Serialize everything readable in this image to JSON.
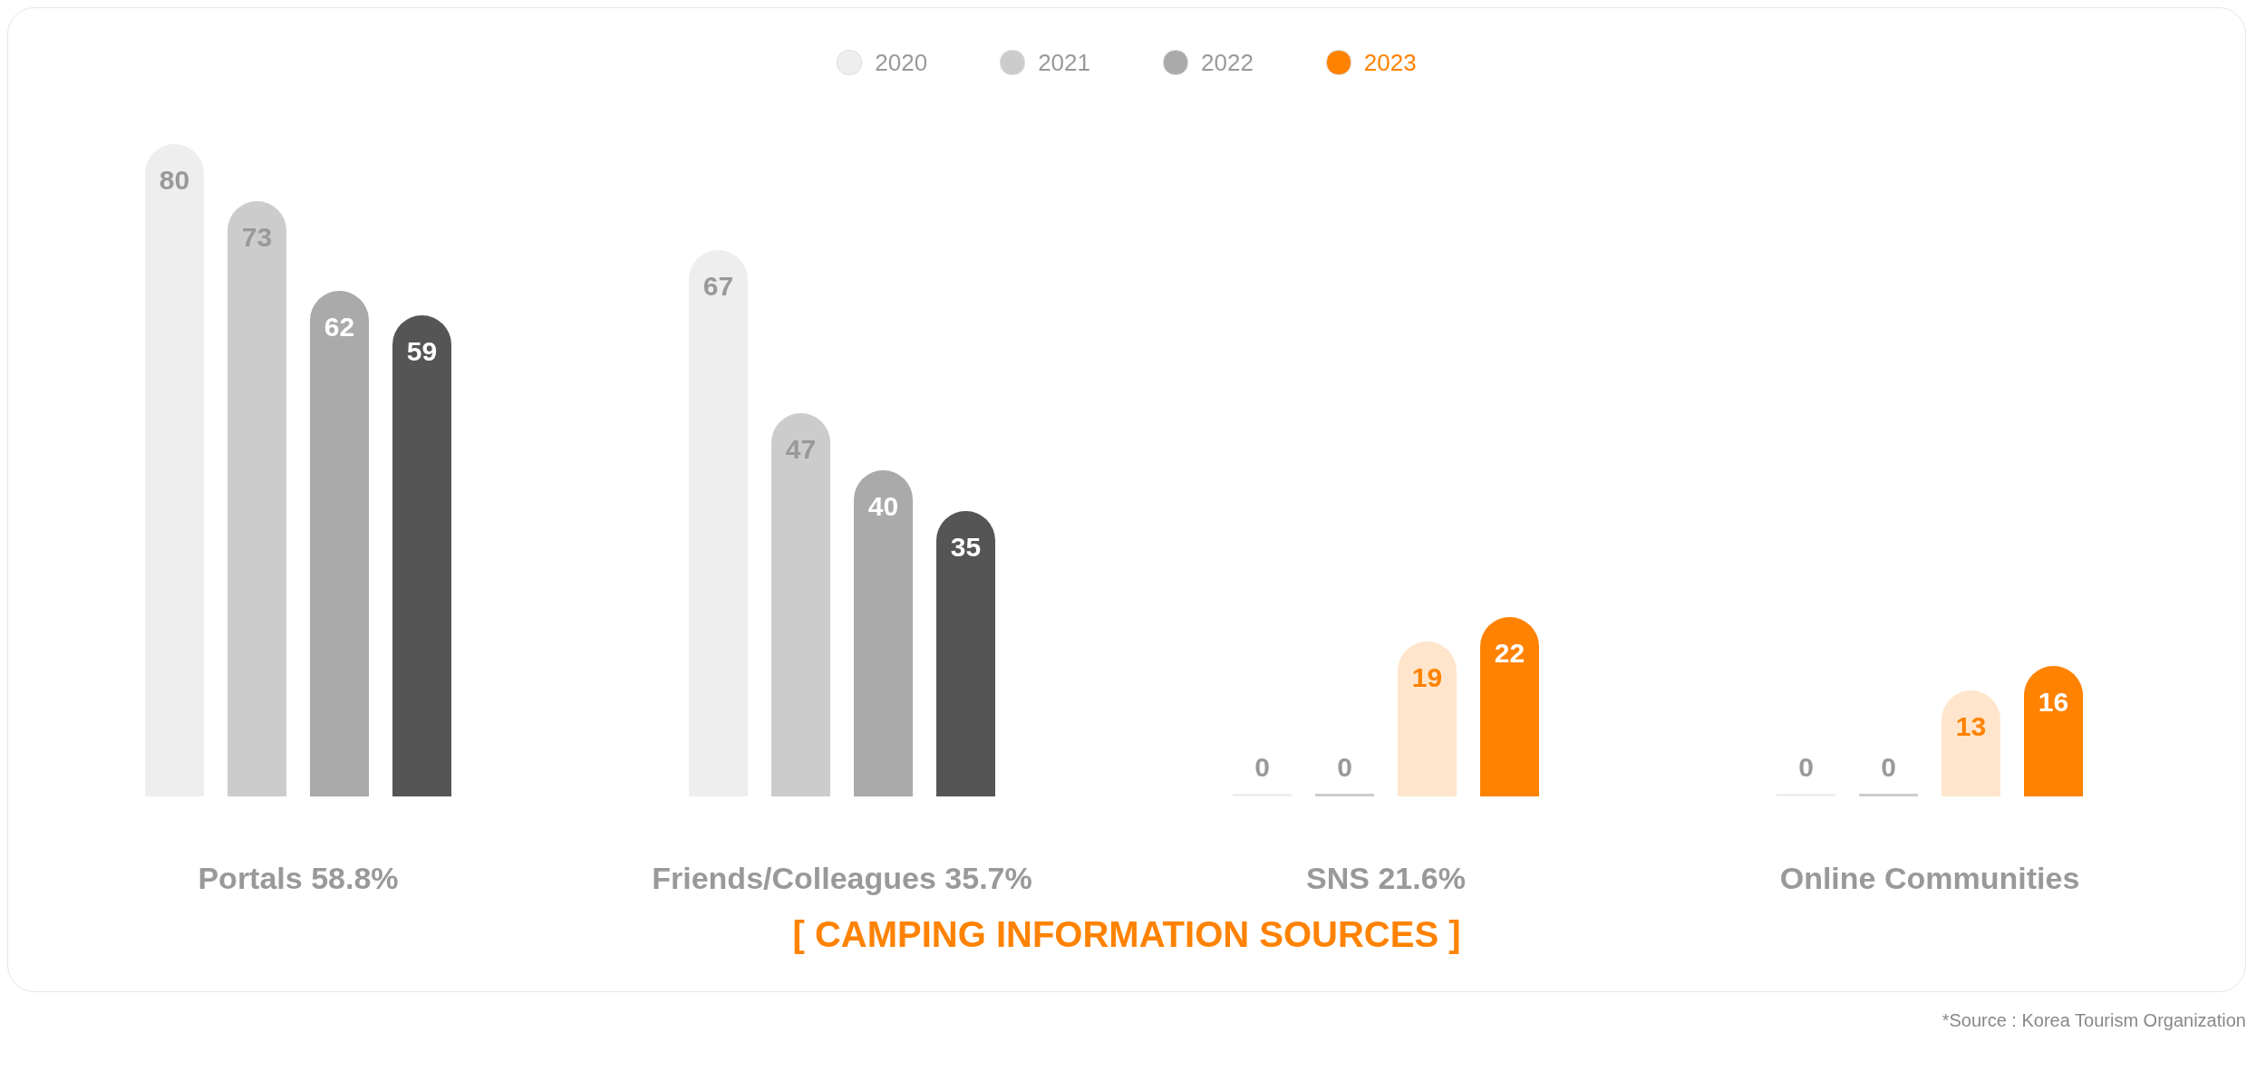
{
  "chart_data": {
    "type": "bar",
    "title": "[ CAMPING INFORMATION SOURCES ]",
    "annotations": [
      "*Source : Korea Tourism Organization"
    ],
    "categories": [
      "Portals 58.8%",
      "Friends/Colleagues 35.7%",
      "SNS 21.6%",
      "Online Communities"
    ],
    "series": [
      {
        "name": "2020",
        "color": "#eeeeee",
        "colors": [
          "#eeeeee",
          "#eeeeee",
          "#eeeeee",
          "#eeeeee"
        ],
        "values": [
          80,
          67,
          0,
          0
        ]
      },
      {
        "name": "2021",
        "color": "#cccccc",
        "colors": [
          "#cccccc",
          "#cccccc",
          "#cccccc",
          "#cccccc"
        ],
        "values": [
          73,
          47,
          0,
          0
        ]
      },
      {
        "name": "2022",
        "color": "#aaaaaa",
        "colors": [
          "#aaaaaa",
          "#aaaaaa",
          "#ffe5cc",
          "#ffe5cc"
        ],
        "values": [
          62,
          40,
          19,
          13
        ]
      },
      {
        "name": "2023",
        "color": "#ff8200",
        "colors": [
          "#555555",
          "#555555",
          "#ff8200",
          "#ff8200"
        ],
        "values": [
          59,
          35,
          22,
          16
        ]
      }
    ],
    "ylim": [
      0,
      80
    ],
    "data_labels": true,
    "legend": "top",
    "grid": false
  }
}
